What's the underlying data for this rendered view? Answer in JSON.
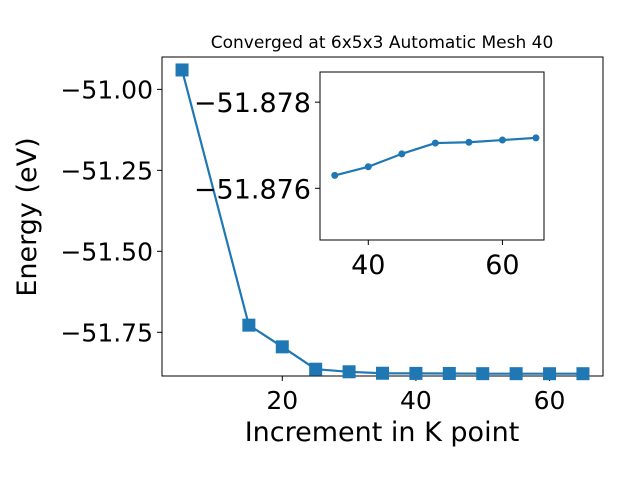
{
  "chart_data": [
    {
      "type": "line",
      "title": "Converged at 6x5x3 Automatic Mesh 40",
      "xlabel": "Increment in K point",
      "ylabel": "Energy (eV)",
      "xlim": [
        2,
        68
      ],
      "ylim": [
        -51.885,
        -50.9
      ],
      "xticks": [
        20,
        40,
        60
      ],
      "xtick_labels": [
        "20",
        "40",
        "60"
      ],
      "yticks": [
        -51.0,
        -51.25,
        -51.5,
        -51.75
      ],
      "ytick_labels": [
        "−51.00",
        "−51.25",
        "−51.50",
        "−51.75"
      ],
      "grid": false,
      "marker": "square",
      "color": "#1f77b4",
      "series": [
        {
          "x": [
            5,
            15,
            20,
            25,
            30,
            35,
            40,
            45,
            50,
            55,
            60,
            65
          ],
          "values": [
            -50.94,
            -51.728,
            -51.795,
            -51.864,
            -51.872,
            -51.8765,
            -51.877,
            -51.8772,
            -51.8778,
            -51.8778,
            -51.8779,
            -51.8779
          ]
        }
      ]
    },
    {
      "type": "line",
      "role": "inset",
      "xlim": [
        32.8,
        66.2
      ],
      "ylim": [
        -51.8787,
        -51.8748
      ],
      "xticks": [
        40,
        60
      ],
      "xtick_labels": [
        "40",
        "60"
      ],
      "yticks": [
        -51.878,
        -51.876
      ],
      "ytick_labels": [
        "−51.878",
        "−51.876"
      ],
      "y_inverted": true,
      "grid": false,
      "marker": "circle",
      "color": "#1f77b4",
      "series": [
        {
          "x": [
            35,
            40,
            45,
            50,
            55,
            60,
            65
          ],
          "values": [
            -51.8763,
            -51.8765,
            -51.8768,
            -51.87705,
            -51.87707,
            -51.87712,
            -51.87717
          ]
        }
      ]
    }
  ]
}
